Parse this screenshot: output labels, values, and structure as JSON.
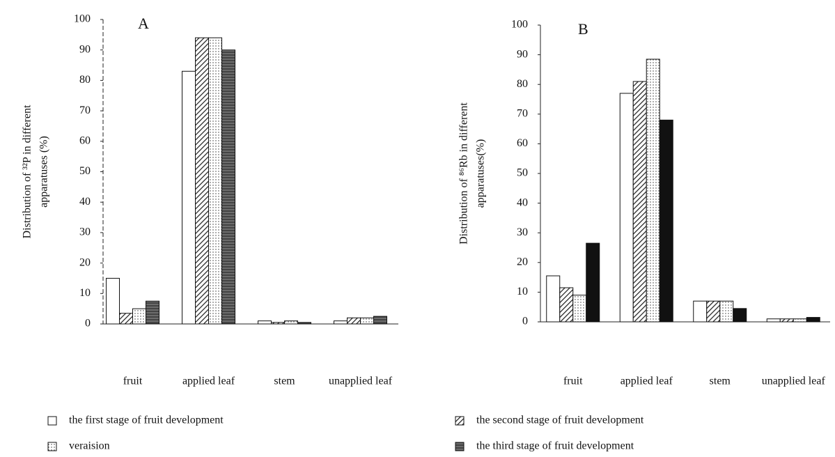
{
  "chart_data": [
    {
      "type": "bar",
      "title": "A",
      "ylabel": [
        "Distribution of ³²P in different",
        "apparatuses (%)"
      ],
      "categories": [
        "fruit",
        "applied leaf",
        "stem",
        "unapplied leaf"
      ],
      "series": [
        {
          "name": "the first stage of fruit development",
          "pattern": "plain",
          "values": [
            15,
            83,
            1,
            1
          ]
        },
        {
          "name": "the second stage of fruit development",
          "pattern": "hatch",
          "values": [
            3.5,
            94,
            0.5,
            2
          ]
        },
        {
          "name": "veraision",
          "pattern": "dots",
          "values": [
            5,
            94,
            1,
            2
          ]
        },
        {
          "name": "the third stage of fruit development",
          "pattern": "dark",
          "values": [
            7.5,
            90,
            0.5,
            2.5
          ]
        }
      ],
      "ylim": [
        0,
        100
      ],
      "yticks": [
        0,
        10,
        20,
        30,
        40,
        50,
        60,
        70,
        80,
        90,
        100
      ]
    },
    {
      "type": "bar",
      "title": "B",
      "ylabel": [
        "Distribution of ⁸⁶Rb in different",
        "apparatuses(%)"
      ],
      "categories": [
        "fruit",
        "applied leaf",
        "stem",
        "unapplied leaf"
      ],
      "series": [
        {
          "pattern": "plain",
          "values": [
            15.5,
            77,
            7,
            1
          ]
        },
        {
          "pattern": "hatch",
          "values": [
            11.5,
            81,
            7,
            1
          ]
        },
        {
          "pattern": "dots",
          "values": [
            9,
            88.5,
            7,
            1
          ]
        },
        {
          "pattern": "solid",
          "values": [
            26.5,
            68,
            4.5,
            1.5
          ]
        }
      ],
      "ylim": [
        0,
        100
      ],
      "yticks": [
        0,
        10,
        20,
        30,
        40,
        50,
        60,
        70,
        80,
        90,
        100
      ]
    }
  ]
}
